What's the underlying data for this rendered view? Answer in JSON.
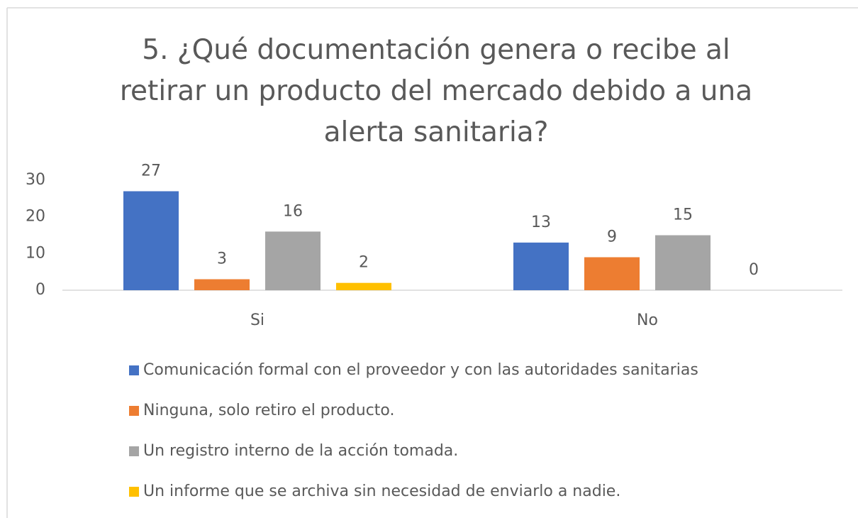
{
  "chart_data": {
    "type": "bar",
    "title": "5.  ¿Qué documentación genera o recibe al retirar un producto del mercado debido a una alerta sanitaria?",
    "categories": [
      "Si",
      "No"
    ],
    "series": [
      {
        "name": "Comunicación formal con el proveedor y con las autoridades sanitarias",
        "color": "#4472c4",
        "values": [
          27,
          13
        ]
      },
      {
        "name": "Ninguna, solo retiro el producto.",
        "color": "#ed7d31",
        "values": [
          3,
          9
        ]
      },
      {
        "name": "Un registro interno de la acción tomada.",
        "color": "#a5a5a5",
        "values": [
          16,
          15
        ]
      },
      {
        "name": "Un informe que se archiva sin necesidad de enviarlo a nadie.",
        "color": "#ffc000",
        "values": [
          2,
          0
        ]
      }
    ],
    "ylim": [
      0,
      30
    ],
    "yticks": [
      0,
      10,
      20,
      30
    ],
    "grid": false,
    "legend": "bottom"
  }
}
